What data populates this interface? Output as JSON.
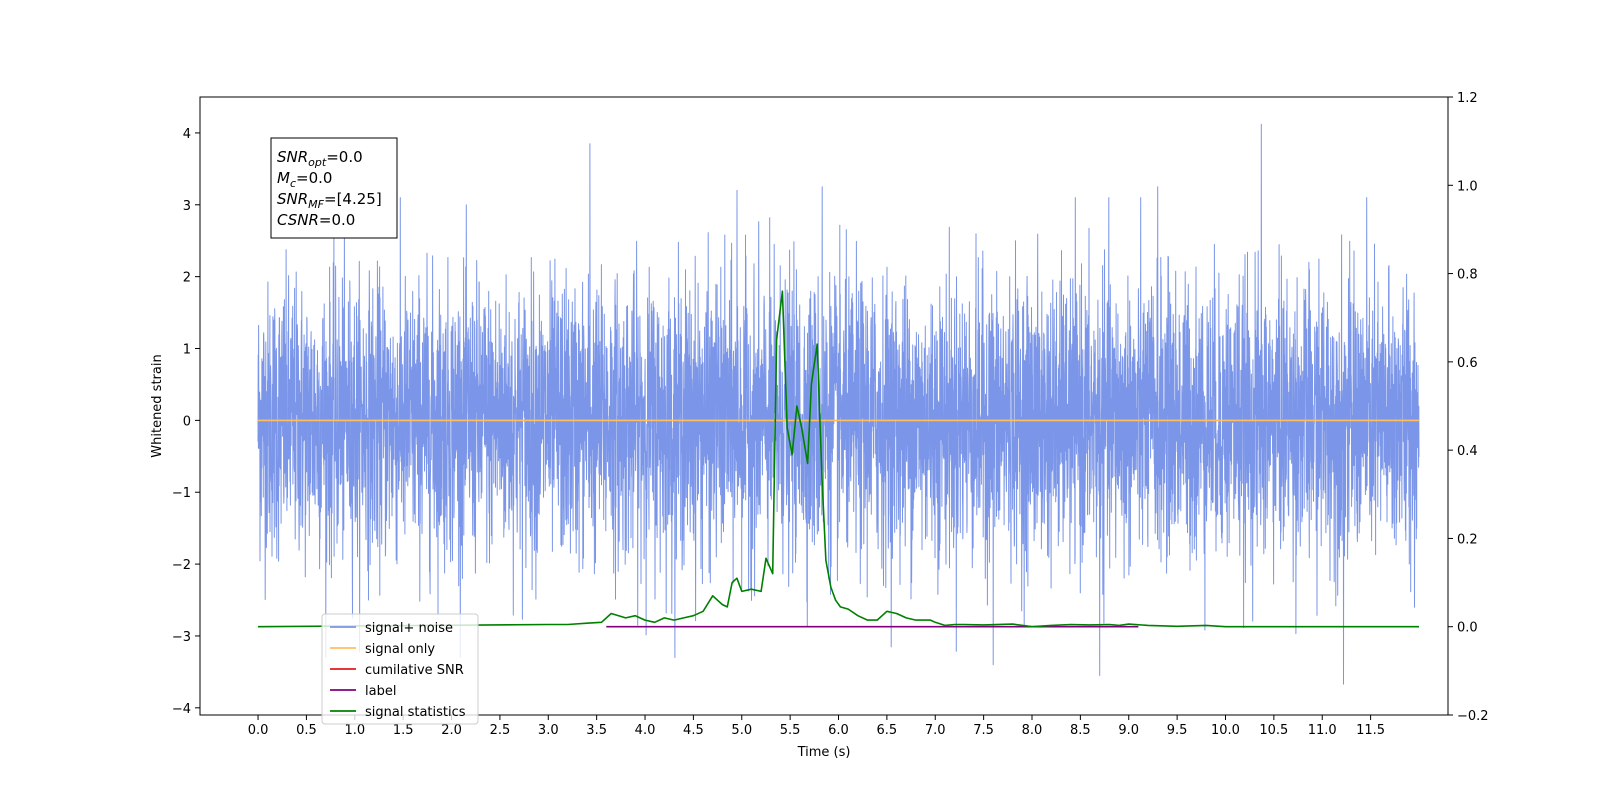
{
  "chart_data": {
    "type": "line",
    "title": "",
    "xlabel": "Time (s)",
    "ylabel": "Whitened strain",
    "xlim": [
      -0.6,
      12.3
    ],
    "ylim": [
      -4.1,
      4.5
    ],
    "y2lim": [
      -0.2,
      1.2
    ],
    "x_ticks": [
      "0.0",
      "0.5",
      "1.0",
      "1.5",
      "2.0",
      "2.5",
      "3.0",
      "3.5",
      "4.0",
      "4.5",
      "5.0",
      "5.5",
      "6.0",
      "6.5",
      "7.0",
      "7.5",
      "8.0",
      "8.5",
      "9.0",
      "9.5",
      "10.0",
      "10.5",
      "11.0",
      "11.5"
    ],
    "y_ticks": [
      "4",
      "3",
      "2",
      "1",
      "0",
      "−1",
      "−2",
      "−3",
      "−4"
    ],
    "y2_ticks": [
      "1.2",
      "1.0",
      "0.8",
      "0.6",
      "0.4",
      "0.2",
      "0.0",
      "−0.2"
    ],
    "grid": false,
    "legend_position": "lower-left",
    "annotation": {
      "lines": [
        {
          "main": "SNR",
          "sub": "opt",
          "value": "=0.0"
        },
        {
          "main": "M",
          "sub": "c",
          "value": "=0.0"
        },
        {
          "main": "SNR",
          "sub": "MF",
          "value": "=[4.25]"
        },
        {
          "main": "CSNR",
          "sub": "",
          "value": "=0.0"
        }
      ]
    },
    "series": [
      {
        "name": "signal+ noise",
        "color": "#7b96e8",
        "axis": "left",
        "kind": "noise",
        "x_range": [
          0.0,
          12.0
        ],
        "sigma": 1.0,
        "peaks": [
          {
            "x": 3.43,
            "y": 3.85
          },
          {
            "x": 4.95,
            "y": 3.2
          },
          {
            "x": 5.83,
            "y": 3.25
          },
          {
            "x": 10.37,
            "y": 4.12
          },
          {
            "x": 11.22,
            "y": -3.67
          },
          {
            "x": 8.7,
            "y": -3.55
          },
          {
            "x": 7.6,
            "y": -3.4
          },
          {
            "x": 9.3,
            "y": 3.25
          }
        ]
      },
      {
        "name": "signal only",
        "color": "#ffbf60",
        "axis": "left",
        "x": [
          0.0,
          12.0
        ],
        "y": [
          0.0,
          0.0
        ]
      },
      {
        "name": "cumilative SNR",
        "color": "#e41a1c",
        "axis": "right",
        "x": [],
        "y": []
      },
      {
        "name": "label",
        "color": "#800080",
        "axis": "right",
        "x": [
          3.6,
          9.1
        ],
        "y": [
          0.0,
          0.0
        ]
      },
      {
        "name": "signal statistics",
        "color": "#008000",
        "axis": "right",
        "x": [
          0.0,
          3.0,
          3.2,
          3.4,
          3.55,
          3.65,
          3.8,
          3.9,
          4.0,
          4.1,
          4.2,
          4.3,
          4.4,
          4.5,
          4.6,
          4.7,
          4.8,
          4.85,
          4.9,
          4.95,
          5.0,
          5.1,
          5.2,
          5.25,
          5.32,
          5.36,
          5.42,
          5.47,
          5.52,
          5.57,
          5.62,
          5.68,
          5.72,
          5.78,
          5.83,
          5.87,
          5.92,
          5.97,
          6.02,
          6.1,
          6.2,
          6.3,
          6.4,
          6.5,
          6.6,
          6.7,
          6.8,
          6.95,
          7.0,
          7.1,
          7.2,
          7.3,
          7.5,
          7.8,
          8.0,
          8.2,
          8.4,
          8.6,
          8.8,
          8.9,
          9.0,
          9.2,
          9.5,
          9.8,
          10.0,
          12.0
        ],
        "y": [
          0.0,
          0.005,
          0.005,
          0.008,
          0.01,
          0.03,
          0.02,
          0.025,
          0.015,
          0.01,
          0.02,
          0.015,
          0.02,
          0.025,
          0.035,
          0.07,
          0.05,
          0.045,
          0.1,
          0.11,
          0.08,
          0.085,
          0.08,
          0.155,
          0.12,
          0.65,
          0.76,
          0.45,
          0.39,
          0.5,
          0.45,
          0.37,
          0.55,
          0.64,
          0.33,
          0.15,
          0.09,
          0.06,
          0.045,
          0.04,
          0.025,
          0.015,
          0.015,
          0.035,
          0.03,
          0.02,
          0.015,
          0.015,
          0.01,
          0.003,
          0.005,
          0.005,
          0.004,
          0.006,
          0.0,
          0.003,
          0.005,
          0.004,
          0.005,
          0.003,
          0.006,
          0.003,
          0.001,
          0.003,
          0.0,
          0.0
        ]
      }
    ]
  }
}
